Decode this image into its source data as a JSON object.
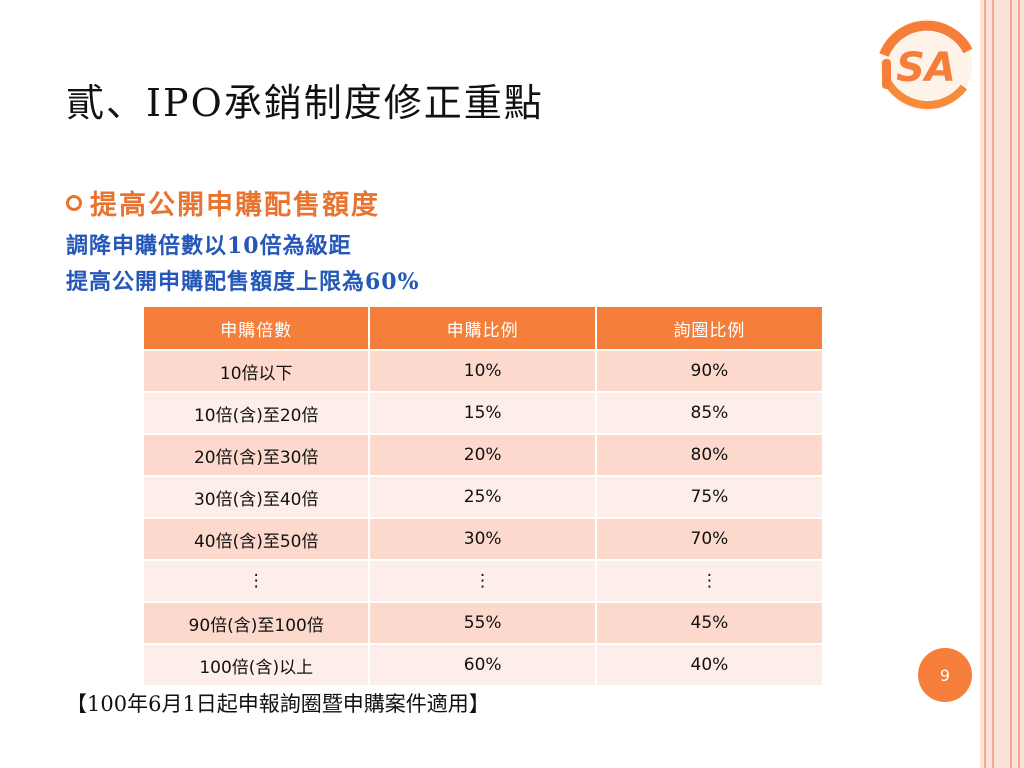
{
  "title": "貳、IPO承銷制度修正重點",
  "bullet": "提高公開申購配售額度",
  "sub_lines": [
    "調降申購倍數以10倍為級距",
    "提高公開申購配售額度上限為60%"
  ],
  "table": {
    "headers": [
      "申購倍數",
      "申購比例",
      "詢圈比例"
    ],
    "rows": [
      [
        "10倍以下",
        "10%",
        "90%"
      ],
      [
        "10倍(含)至20倍",
        "15%",
        "85%"
      ],
      [
        "20倍(含)至30倍",
        "20%",
        "80%"
      ],
      [
        "30倍(含)至40倍",
        "25%",
        "75%"
      ],
      [
        "40倍(含)至50倍",
        "30%",
        "70%"
      ],
      [
        "⋮",
        "⋮",
        "⋮"
      ],
      [
        "90倍(含)至100倍",
        "55%",
        "45%"
      ],
      [
        "100倍(含)以上",
        "60%",
        "40%"
      ]
    ]
  },
  "note": "【100年6月1日起申報詢圈暨申購案件適用】",
  "page_number": "9",
  "logo_text": "SA",
  "colors": {
    "accent": "#f47e3a",
    "blue_text": "#2457b8",
    "row_dark": "#fcd9cc",
    "row_light": "#fdeeea"
  }
}
